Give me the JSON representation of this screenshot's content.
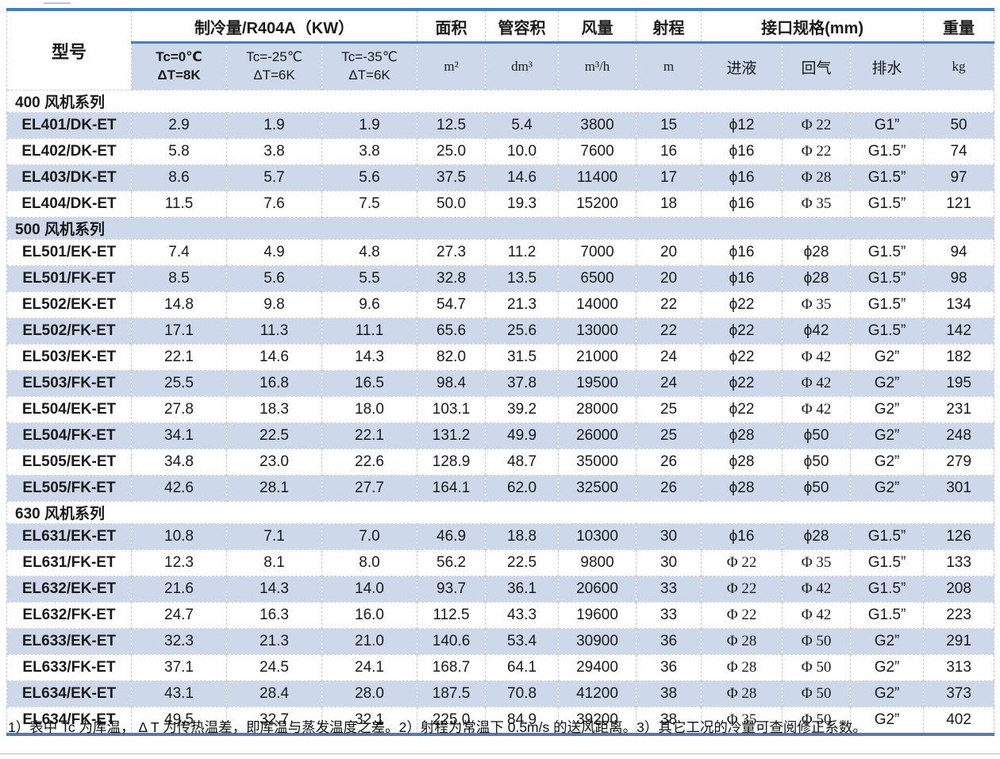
{
  "header": {
    "model_label": "型号",
    "cooling": {
      "label": "制冷量/R404A（KW）",
      "subs": [
        {
          "l1": "Tc=0℃",
          "l2": "ΔT=8K"
        },
        {
          "l1": "Tc=-25℃",
          "l2": "ΔT=6K"
        },
        {
          "l1": "Tc=-35℃",
          "l2": "ΔT=6K"
        }
      ]
    },
    "area": {
      "label": "面积",
      "unit": "m²"
    },
    "tube": {
      "label": "管容积",
      "unit": "dm³"
    },
    "airflow": {
      "label": "风量",
      "unit": "m³/h"
    },
    "throw": {
      "label": "射程",
      "unit": "m"
    },
    "conn": {
      "label": "接口规格(mm)",
      "subs": [
        "进液",
        "回气",
        "排水"
      ]
    },
    "weight": {
      "label": "重量",
      "unit": "kg"
    }
  },
  "sections": [
    {
      "title": "400 风机系列",
      "rows": [
        [
          "EL401/DK-ET",
          "2.9",
          "1.9",
          "1.9",
          "12.5",
          "5.4",
          "3800",
          "15",
          "ϕ12",
          "Φ 22",
          "G1”",
          "50"
        ],
        [
          "EL402/DK-ET",
          "5.8",
          "3.8",
          "3.8",
          "25.0",
          "10.0",
          "7600",
          "16",
          "ϕ16",
          "Φ 22",
          "G1.5”",
          "74"
        ],
        [
          "EL403/DK-ET",
          "8.6",
          "5.7",
          "5.6",
          "37.5",
          "14.6",
          "11400",
          "17",
          "ϕ16",
          "Φ 28",
          "G1.5”",
          "97"
        ],
        [
          "EL404/DK-ET",
          "11.5",
          "7.6",
          "7.5",
          "50.0",
          "19.3",
          "15200",
          "18",
          "ϕ16",
          "Φ 35",
          "G1.5”",
          "121"
        ]
      ]
    },
    {
      "title": "500 风机系列",
      "rows": [
        [
          "EL501/EK-ET",
          "7.4",
          "4.9",
          "4.8",
          "27.3",
          "11.2",
          "7000",
          "20",
          "ϕ16",
          "ϕ28",
          "G1.5”",
          "94"
        ],
        [
          "EL501/FK-ET",
          "8.5",
          "5.6",
          "5.5",
          "32.8",
          "13.5",
          "6500",
          "20",
          "ϕ16",
          "ϕ28",
          "G1.5”",
          "98"
        ],
        [
          "EL502/EK-ET",
          "14.8",
          "9.8",
          "9.6",
          "54.7",
          "21.3",
          "14000",
          "22",
          "ϕ22",
          "Φ 35",
          "G1.5”",
          "134"
        ],
        [
          "EL502/FK-ET",
          "17.1",
          "11.3",
          "11.1",
          "65.6",
          "25.6",
          "13000",
          "22",
          "ϕ22",
          "ϕ42",
          "G1.5”",
          "142"
        ],
        [
          "EL503/EK-ET",
          "22.1",
          "14.6",
          "14.3",
          "82.0",
          "31.5",
          "21000",
          "24",
          "ϕ22",
          "Φ 42",
          "G2”",
          "182"
        ],
        [
          "EL503/FK-ET",
          "25.5",
          "16.8",
          "16.5",
          "98.4",
          "37.8",
          "19500",
          "24",
          "ϕ22",
          "Φ 42",
          "G2”",
          "195"
        ],
        [
          "EL504/EK-ET",
          "27.8",
          "18.3",
          "18.0",
          "103.1",
          "39.2",
          "28000",
          "25",
          "ϕ22",
          "Φ 42",
          "G2”",
          "231"
        ],
        [
          "EL504/FK-ET",
          "34.1",
          "22.5",
          "22.1",
          "131.2",
          "49.9",
          "26000",
          "25",
          "ϕ28",
          "ϕ50",
          "G2”",
          "248"
        ],
        [
          "EL505/EK-ET",
          "34.8",
          "23.0",
          "22.6",
          "128.9",
          "48.7",
          "35000",
          "26",
          "ϕ28",
          "ϕ50",
          "G2”",
          "279"
        ],
        [
          "EL505/FK-ET",
          "42.6",
          "28.1",
          "27.7",
          "164.1",
          "62.0",
          "32500",
          "26",
          "ϕ28",
          "ϕ50",
          "G2”",
          "301"
        ]
      ]
    },
    {
      "title": "630 风机系列",
      "rows": [
        [
          "EL631/EK-ET",
          "10.8",
          "7.1",
          "7.0",
          "46.9",
          "18.8",
          "10300",
          "30",
          "ϕ16",
          "ϕ28",
          "G1.5”",
          "126"
        ],
        [
          "EL631/FK-ET",
          "12.3",
          "8.1",
          "8.0",
          "56.2",
          "22.5",
          "9800",
          "30",
          "Φ 22",
          "Φ 35",
          "G1.5”",
          "133"
        ],
        [
          "EL632/EK-ET",
          "21.6",
          "14.3",
          "14.0",
          "93.7",
          "36.1",
          "20600",
          "33",
          "Φ 22",
          "Φ 42",
          "G1.5”",
          "208"
        ],
        [
          "EL632/FK-ET",
          "24.7",
          "16.3",
          "16.0",
          "112.5",
          "43.3",
          "19600",
          "33",
          "Φ 22",
          "Φ 42",
          "G1.5”",
          "223"
        ],
        [
          "EL633/EK-ET",
          "32.3",
          "21.3",
          "21.0",
          "140.6",
          "53.4",
          "30900",
          "36",
          "Φ 28",
          "Φ 50",
          "G2”",
          "291"
        ],
        [
          "EL633/FK-ET",
          "37.1",
          "24.5",
          "24.1",
          "168.7",
          "64.1",
          "29400",
          "36",
          "Φ 28",
          "Φ 50",
          "G2”",
          "313"
        ],
        [
          "EL634/EK-ET",
          "43.1",
          "28.4",
          "28.0",
          "187.5",
          "70.8",
          "41200",
          "38",
          "Φ 28",
          "Φ 50",
          "G2”",
          "373"
        ],
        [
          "EL634/FK-ET",
          "49.5",
          "32.7",
          "32.1",
          "225.0",
          "84.9",
          "39200",
          "38",
          "Φ 35",
          "Φ 50",
          "G2”",
          "402"
        ]
      ]
    }
  ],
  "footnote": "1）表中 Tc 为库温， Δ T 为传热温差，即库温与蒸发温度之差。2）射程为常温下 0.5m/s 的送风距离。3）其它工况的冷量可查阅修正系数。"
}
